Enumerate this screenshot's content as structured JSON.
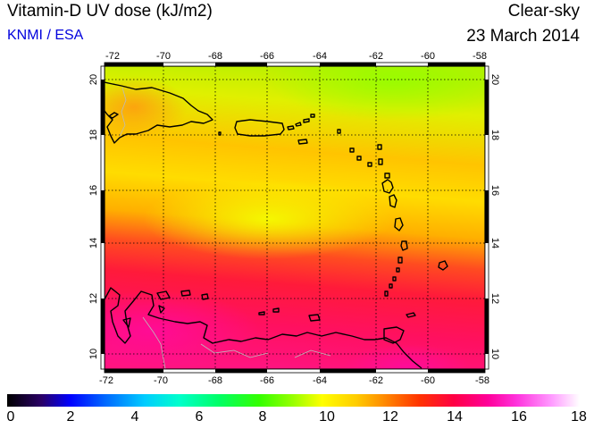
{
  "header": {
    "title": "Vitamin-D UV dose (kJ/m2)",
    "credit": "KNMI / ESA",
    "mode": "Clear-sky",
    "date": "23 March 2014"
  },
  "map": {
    "lon_range": [
      -72,
      -58
    ],
    "lat_range": [
      9.5,
      20.5
    ],
    "lon_ticks": [
      "-72",
      "-70",
      "-68",
      "-66",
      "-64",
      "-62",
      "-60",
      "-58"
    ],
    "lat_ticks": [
      "20",
      "18",
      "16",
      "14",
      "12",
      "10"
    ],
    "grid": "dotted",
    "coastline_color": "#000000",
    "border_color": "#bbbbbb"
  },
  "colorbar": {
    "min": 0,
    "max": 18,
    "labels": [
      "0",
      "2",
      "4",
      "6",
      "8",
      "10",
      "12",
      "14",
      "16",
      "18"
    ]
  }
}
